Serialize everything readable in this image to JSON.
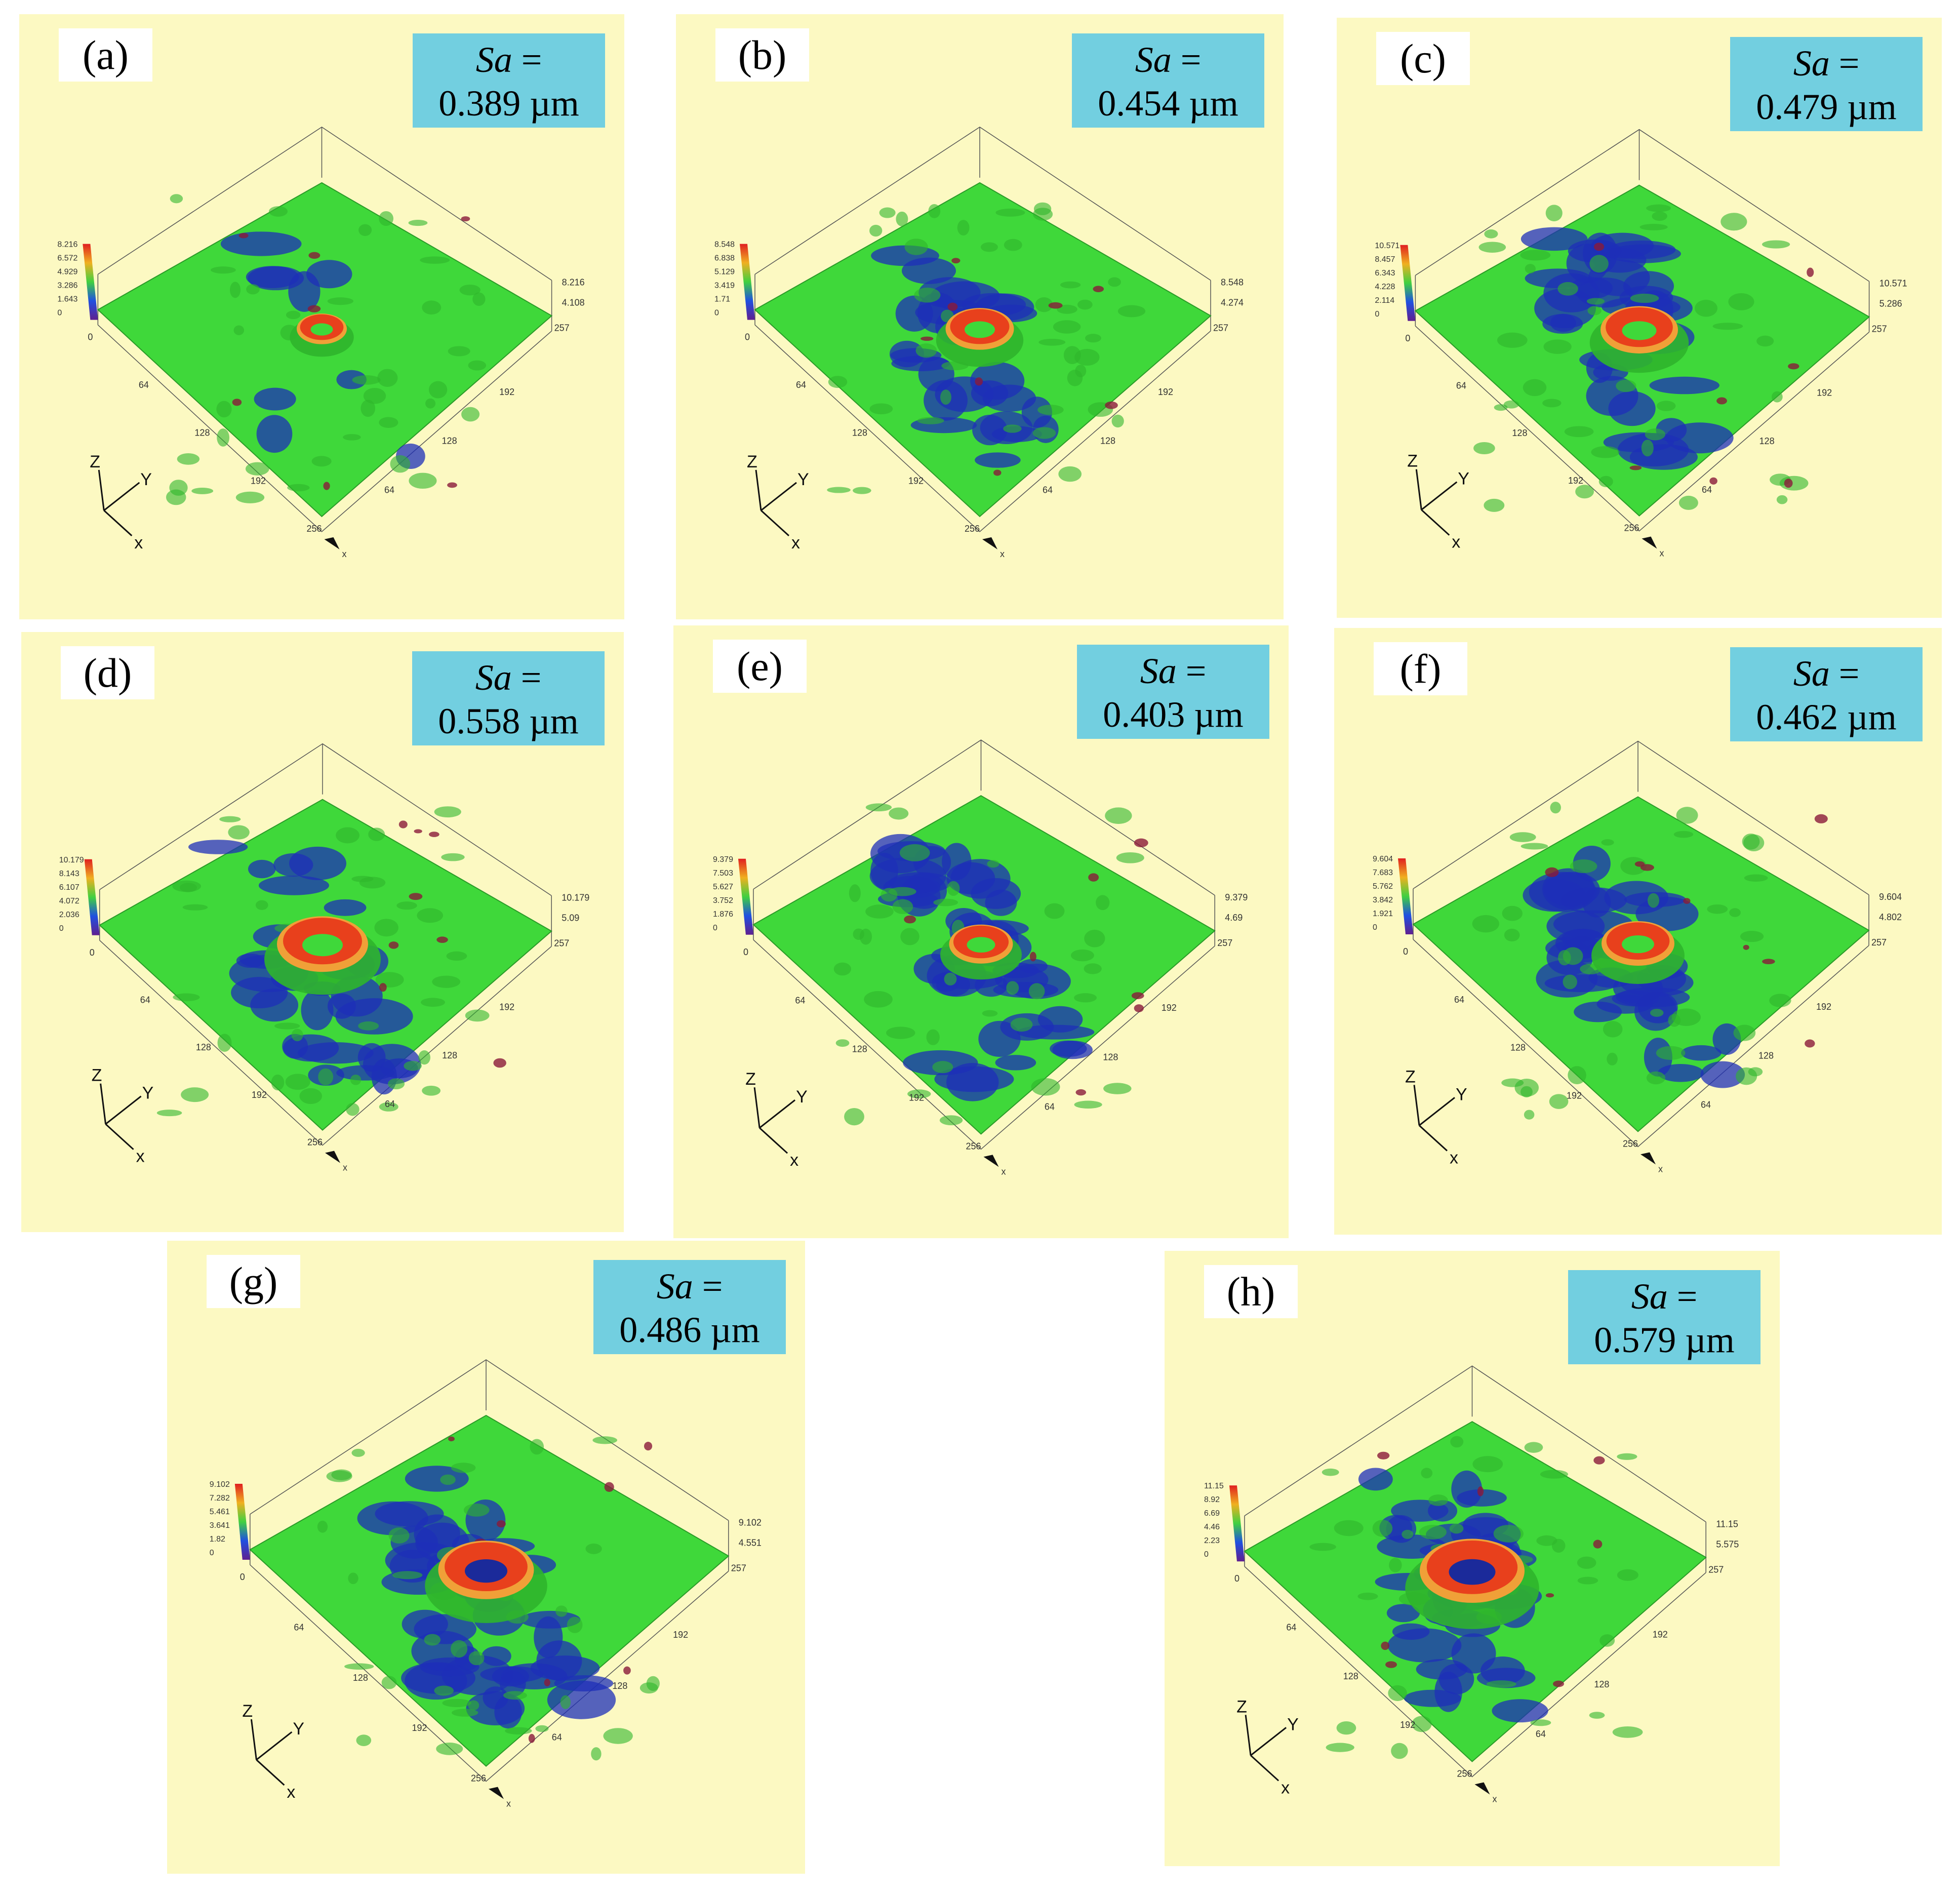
{
  "panels": [
    {
      "id": "a",
      "label": "(a)",
      "sa_symbol": "Sa",
      "sa_eq": " =",
      "sa_value": "0.389 µm",
      "zmax": "8.216",
      "zmid": "4.108",
      "zscale": [
        "8.216",
        "6.572",
        "4.929",
        "3.286",
        "1.643",
        "0"
      ]
    },
    {
      "id": "b",
      "label": "(b)",
      "sa_symbol": "Sa",
      "sa_eq": " =",
      "sa_value": "0.454 µm",
      "zmax": "8.548",
      "zmid": "4.274",
      "zscale": [
        "8.548",
        "6.838",
        "5.129",
        "3.419",
        "1.71",
        "0"
      ]
    },
    {
      "id": "c",
      "label": "(c)",
      "sa_symbol": "Sa",
      "sa_eq": " =",
      "sa_value": "0.479 µm",
      "zmax": "10.571",
      "zmid": "5.286",
      "zscale": [
        "10.571",
        "8.457",
        "6.343",
        "4.228",
        "2.114",
        "0"
      ]
    },
    {
      "id": "d",
      "label": "(d)",
      "sa_symbol": "Sa",
      "sa_eq": " =",
      "sa_value": "0.558 µm",
      "zmax": "10.179",
      "zmid": "5.09",
      "zscale": [
        "10.179",
        "8.143",
        "6.107",
        "4.072",
        "2.036",
        "0"
      ]
    },
    {
      "id": "e",
      "label": "(e)",
      "sa_symbol": "Sa",
      "sa_eq": " =",
      "sa_value": "0.403 µm",
      "zmax": "9.379",
      "zmid": "4.69",
      "zscale": [
        "9.379",
        "7.503",
        "5.627",
        "3.752",
        "1.876",
        "0"
      ]
    },
    {
      "id": "f",
      "label": "(f)",
      "sa_symbol": "Sa",
      "sa_eq": " =",
      "sa_value": "0.462 µm",
      "zmax": "9.604",
      "zmid": "4.802",
      "zscale": [
        "9.604",
        "7.683",
        "5.762",
        "3.842",
        "1.921",
        "0"
      ]
    },
    {
      "id": "g",
      "label": "(g)",
      "sa_symbol": "Sa",
      "sa_eq": " =",
      "sa_value": "0.486 µm",
      "zmax": "9.102",
      "zmid": "4.551",
      "zscale": [
        "9.102",
        "7.282",
        "5.461",
        "3.641",
        "1.82",
        "0"
      ]
    },
    {
      "id": "h",
      "label": "(h)",
      "sa_symbol": "Sa",
      "sa_eq": " =",
      "sa_value": "0.579 µm",
      "zmax": "11.15",
      "zmid": "5.575",
      "zscale": [
        "11.15",
        "8.92",
        "6.69",
        "4.46",
        "2.23",
        "0"
      ]
    }
  ],
  "axis_ticks": {
    "y_front": [
      "64",
      "128",
      "192",
      "256"
    ],
    "x_right": [
      "192",
      "128",
      "64"
    ],
    "corner_257": "257",
    "origin": "0",
    "x_end": "x"
  },
  "orientation": {
    "z": "Z",
    "y": "Y",
    "x": "x"
  },
  "colors": {
    "panel_bg": "#fcf9c2",
    "sa_box": "#72cfe0",
    "surface_green": "#3fd83a",
    "surface_blue": "#1e2fb8",
    "feature_red": "#e8401c",
    "feature_orange": "#f0a038"
  }
}
